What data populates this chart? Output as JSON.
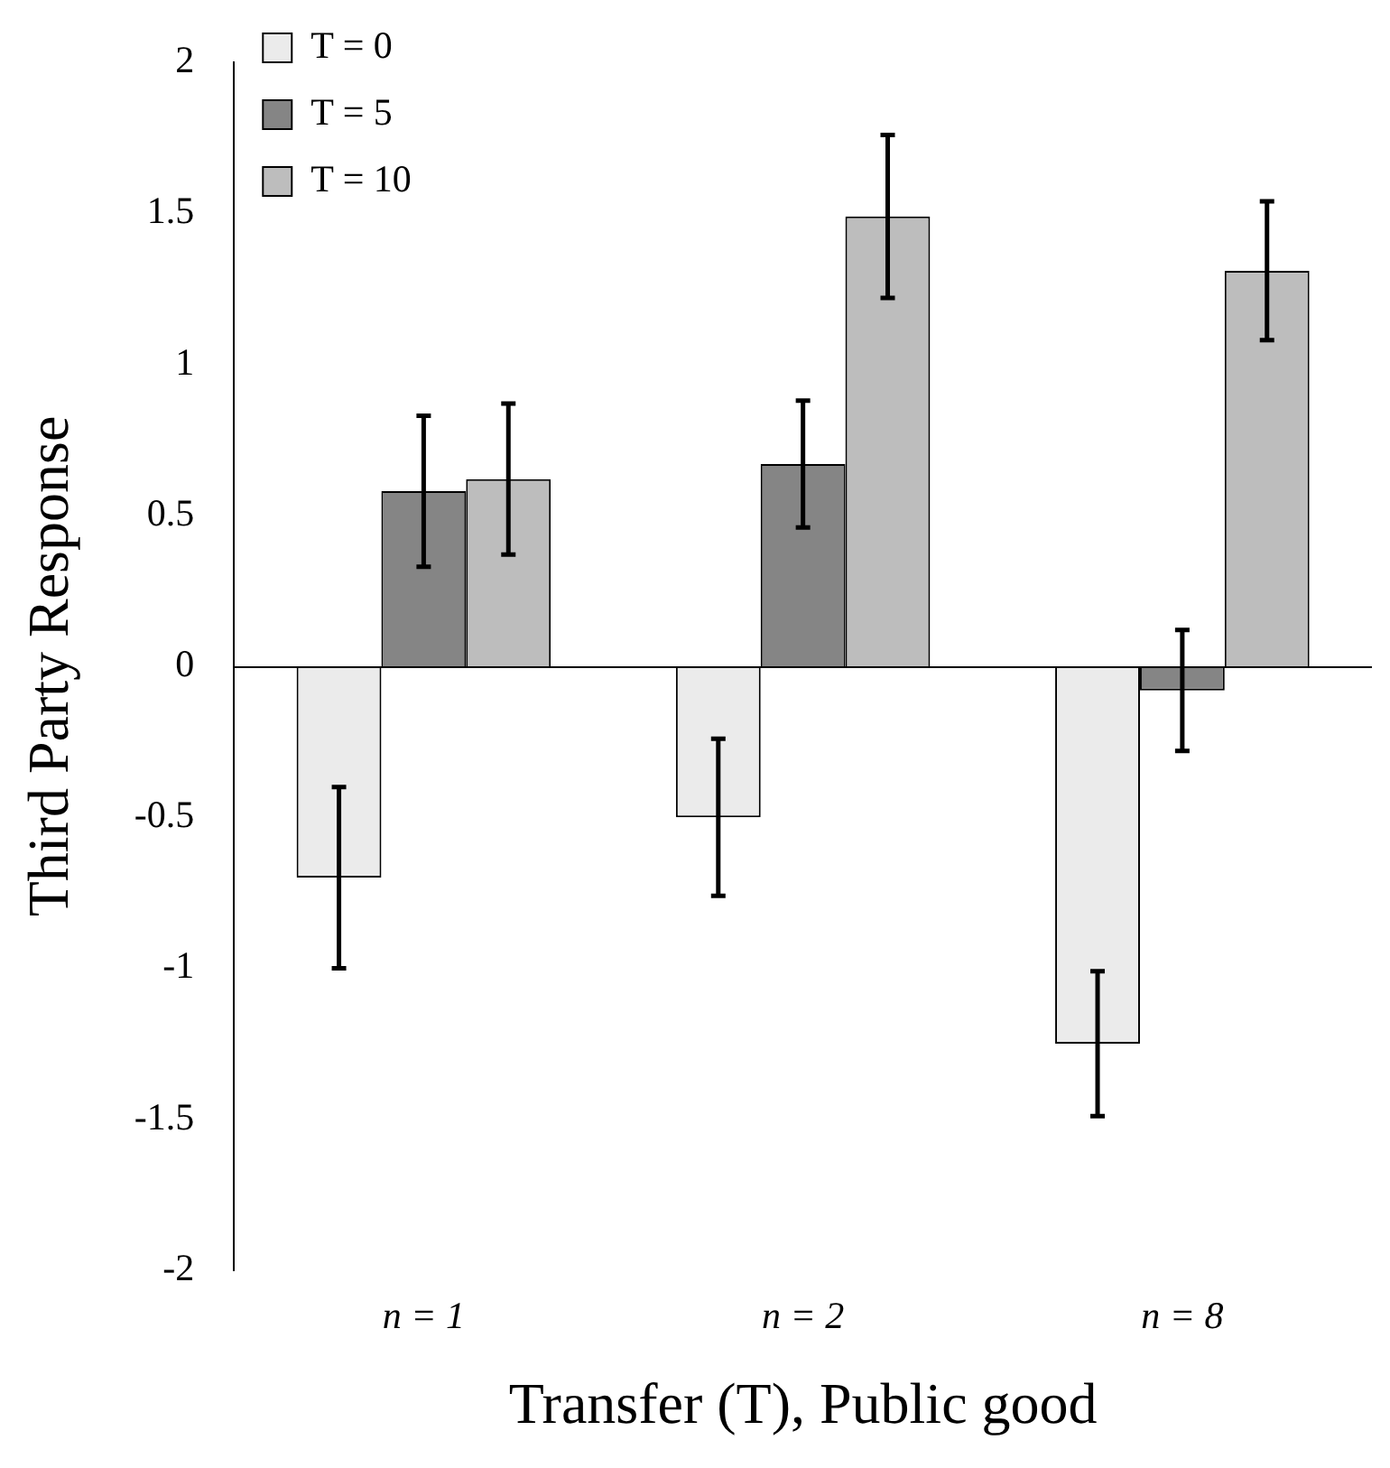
{
  "chart_data": {
    "type": "bar",
    "xlabel": "Transfer (T), Public good",
    "ylabel": "Third Party Response",
    "categories": [
      "n = 1",
      "n = 2",
      "n = 8"
    ],
    "series": [
      {
        "name": "T = 0",
        "color": "#ebebeb",
        "values": [
          -0.7,
          -0.5,
          -1.25
        ],
        "errors": [
          0.3,
          0.26,
          0.24
        ]
      },
      {
        "name": "T = 5",
        "color": "#858585",
        "values": [
          0.58,
          0.67,
          -0.08
        ],
        "errors": [
          0.25,
          0.21,
          0.2
        ]
      },
      {
        "name": "T = 10",
        "color": "#bdbdbd",
        "values": [
          0.62,
          1.49,
          1.31
        ],
        "errors": [
          0.25,
          0.27,
          0.23
        ]
      }
    ],
    "ylim": [
      -2,
      2
    ],
    "yticks": [
      -2,
      -1.5,
      -1,
      -0.5,
      0,
      0.5,
      1,
      1.5,
      2
    ],
    "grid": false,
    "ref_lines": [
      {
        "axis": "y",
        "value": 0,
        "color": "#000000"
      }
    ],
    "legend": "top left"
  }
}
